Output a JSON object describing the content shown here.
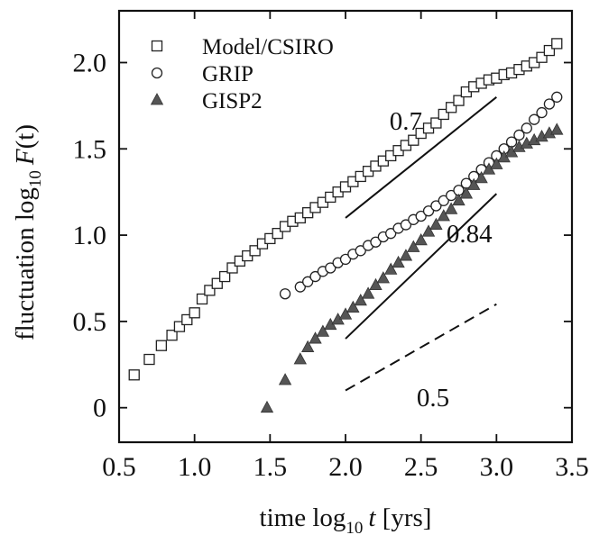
{
  "chart_data": {
    "type": "scatter",
    "xlim": [
      0.5,
      3.5
    ],
    "ylim": [
      -0.2,
      2.3
    ],
    "x_ticks": [
      "0.5",
      "1.0",
      "1.5",
      "2.0",
      "2.5",
      "3.0",
      "3.5"
    ],
    "y_ticks": [
      "0",
      "0.5",
      "1.0",
      "1.5",
      "2.0"
    ],
    "x_tick_values": [
      0.5,
      1.0,
      1.5,
      2.0,
      2.5,
      3.0,
      3.5
    ],
    "y_tick_values": [
      0,
      0.5,
      1.0,
      1.5,
      2.0
    ],
    "xlabel": {
      "prefix": "time   log",
      "sub": "10",
      "var": "t",
      "suffix": " [yrs]"
    },
    "ylabel": {
      "prefix": "fluctuation   log",
      "sub": "10",
      "var": "F",
      "suffix": "(t)"
    },
    "legend_position": "top-left",
    "series": [
      {
        "name": "Model/CSIRO",
        "marker": "square",
        "x": [
          0.6,
          0.7,
          0.78,
          0.85,
          0.9,
          0.95,
          1.0,
          1.05,
          1.1,
          1.15,
          1.2,
          1.25,
          1.3,
          1.35,
          1.4,
          1.45,
          1.5,
          1.55,
          1.6,
          1.65,
          1.7,
          1.75,
          1.8,
          1.85,
          1.9,
          1.95,
          2.0,
          2.05,
          2.1,
          2.15,
          2.2,
          2.25,
          2.3,
          2.35,
          2.4,
          2.45,
          2.5,
          2.55,
          2.6,
          2.65,
          2.7,
          2.75,
          2.8,
          2.85,
          2.9,
          2.95,
          3.0,
          3.05,
          3.1,
          3.15,
          3.2,
          3.25,
          3.3,
          3.35,
          3.4
        ],
        "y": [
          0.19,
          0.28,
          0.36,
          0.42,
          0.47,
          0.51,
          0.55,
          0.63,
          0.68,
          0.72,
          0.76,
          0.81,
          0.85,
          0.88,
          0.91,
          0.95,
          0.98,
          1.01,
          1.05,
          1.08,
          1.1,
          1.13,
          1.16,
          1.19,
          1.22,
          1.25,
          1.28,
          1.31,
          1.34,
          1.37,
          1.4,
          1.43,
          1.46,
          1.49,
          1.52,
          1.55,
          1.59,
          1.62,
          1.65,
          1.7,
          1.74,
          1.78,
          1.83,
          1.86,
          1.88,
          1.9,
          1.91,
          1.93,
          1.94,
          1.96,
          1.98,
          2.0,
          2.03,
          2.07,
          2.11
        ]
      },
      {
        "name": "GRIP",
        "marker": "circle",
        "x": [
          1.6,
          1.7,
          1.75,
          1.8,
          1.85,
          1.9,
          1.95,
          2.0,
          2.05,
          2.1,
          2.15,
          2.2,
          2.25,
          2.3,
          2.35,
          2.4,
          2.45,
          2.5,
          2.55,
          2.6,
          2.65,
          2.7,
          2.75,
          2.8,
          2.85,
          2.9,
          2.95,
          3.0,
          3.05,
          3.1,
          3.15,
          3.2,
          3.25,
          3.3,
          3.35,
          3.4
        ],
        "y": [
          0.66,
          0.7,
          0.73,
          0.76,
          0.79,
          0.81,
          0.84,
          0.86,
          0.89,
          0.91,
          0.94,
          0.96,
          0.99,
          1.01,
          1.04,
          1.06,
          1.09,
          1.11,
          1.14,
          1.17,
          1.2,
          1.23,
          1.26,
          1.3,
          1.34,
          1.38,
          1.42,
          1.46,
          1.5,
          1.54,
          1.58,
          1.62,
          1.67,
          1.71,
          1.76,
          1.8
        ]
      },
      {
        "name": "GISP2",
        "marker": "triangle",
        "x": [
          1.48,
          1.6,
          1.7,
          1.75,
          1.8,
          1.85,
          1.9,
          1.95,
          2.0,
          2.05,
          2.1,
          2.15,
          2.2,
          2.25,
          2.3,
          2.35,
          2.4,
          2.45,
          2.5,
          2.55,
          2.6,
          2.65,
          2.7,
          2.75,
          2.8,
          2.85,
          2.9,
          2.95,
          3.0,
          3.05,
          3.1,
          3.15,
          3.2,
          3.25,
          3.3,
          3.35,
          3.4
        ],
        "y": [
          0.0,
          0.16,
          0.28,
          0.35,
          0.4,
          0.44,
          0.48,
          0.51,
          0.54,
          0.58,
          0.62,
          0.66,
          0.71,
          0.75,
          0.8,
          0.84,
          0.88,
          0.93,
          0.97,
          1.02,
          1.06,
          1.11,
          1.15,
          1.2,
          1.24,
          1.29,
          1.33,
          1.38,
          1.41,
          1.45,
          1.48,
          1.51,
          1.53,
          1.55,
          1.57,
          1.59,
          1.61
        ]
      }
    ],
    "reference_lines": [
      {
        "label": "0.7",
        "style": "solid",
        "x": [
          2.0,
          3.0
        ],
        "y": [
          1.1,
          1.8
        ]
      },
      {
        "label": "0.84",
        "style": "solid",
        "x": [
          2.0,
          3.0
        ],
        "y": [
          0.4,
          1.24
        ]
      },
      {
        "label": "0.5",
        "style": "dashed",
        "x": [
          2.0,
          3.0
        ],
        "y": [
          0.1,
          0.6
        ]
      }
    ]
  }
}
